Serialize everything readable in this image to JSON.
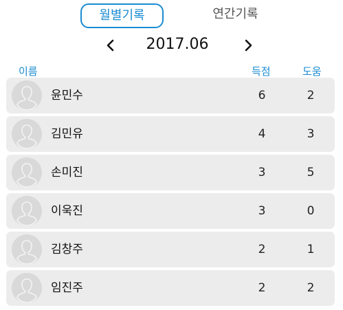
{
  "tabs": {
    "monthly_label": "월별기록",
    "yearly_label": "연간기록",
    "active": "monthly"
  },
  "period": {
    "label": "2017.06",
    "prev_icon": "chevron-left-icon",
    "next_icon": "chevron-right-icon"
  },
  "columns": {
    "name": "이름",
    "score": "득점",
    "assist": "도움"
  },
  "players": [
    {
      "name": "윤민수",
      "score": "6",
      "assist": "2"
    },
    {
      "name": "김민유",
      "score": "4",
      "assist": "3"
    },
    {
      "name": "손미진",
      "score": "3",
      "assist": "5"
    },
    {
      "name": "이욱진",
      "score": "3",
      "assist": "0"
    },
    {
      "name": "김창주",
      "score": "2",
      "assist": "1"
    },
    {
      "name": "임진주",
      "score": "2",
      "assist": "2"
    }
  ],
  "colors": {
    "accent": "#1a8bd2",
    "row_bg": "#ececec",
    "avatar_bg": "#d9d9d9"
  }
}
